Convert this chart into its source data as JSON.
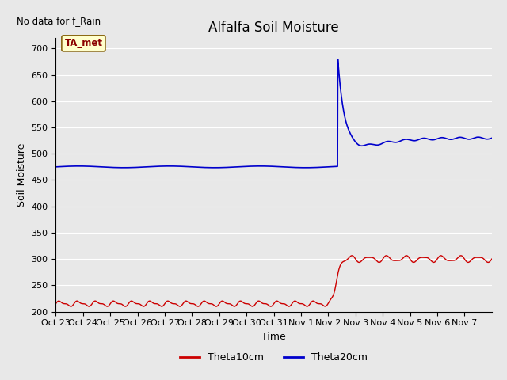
{
  "title": "Alfalfa Soil Moisture",
  "top_left_text": "No data for f_Rain",
  "ylabel": "Soil Moisture",
  "xlabel": "Time",
  "ta_met_label": "TA_met",
  "ylim": [
    200,
    720
  ],
  "yticks": [
    200,
    250,
    300,
    350,
    400,
    450,
    500,
    550,
    600,
    650,
    700
  ],
  "xtick_labels": [
    "Oct 23",
    "Oct 24",
    "Oct 25",
    "Oct 26",
    "Oct 27",
    "Oct 28",
    "Oct 29",
    "Oct 30",
    "Oct 31",
    "Nov 1",
    "Nov 2",
    "Nov 3",
    "Nov 4",
    "Nov 5",
    "Nov 6",
    "Nov 7"
  ],
  "fig_bg_color": "#e8e8e8",
  "plot_bg_color": "#e8e8e8",
  "red_color": "#cc0000",
  "blue_color": "#0000cc",
  "legend_labels": [
    "Theta10cm",
    "Theta20cm"
  ],
  "title_fontsize": 12,
  "axis_label_fontsize": 9,
  "tick_fontsize": 8,
  "grid_color": "#ffffff",
  "ta_met_bg": "#ffffcc",
  "ta_met_edge": "#8b6914",
  "ta_met_text": "#8b0000"
}
